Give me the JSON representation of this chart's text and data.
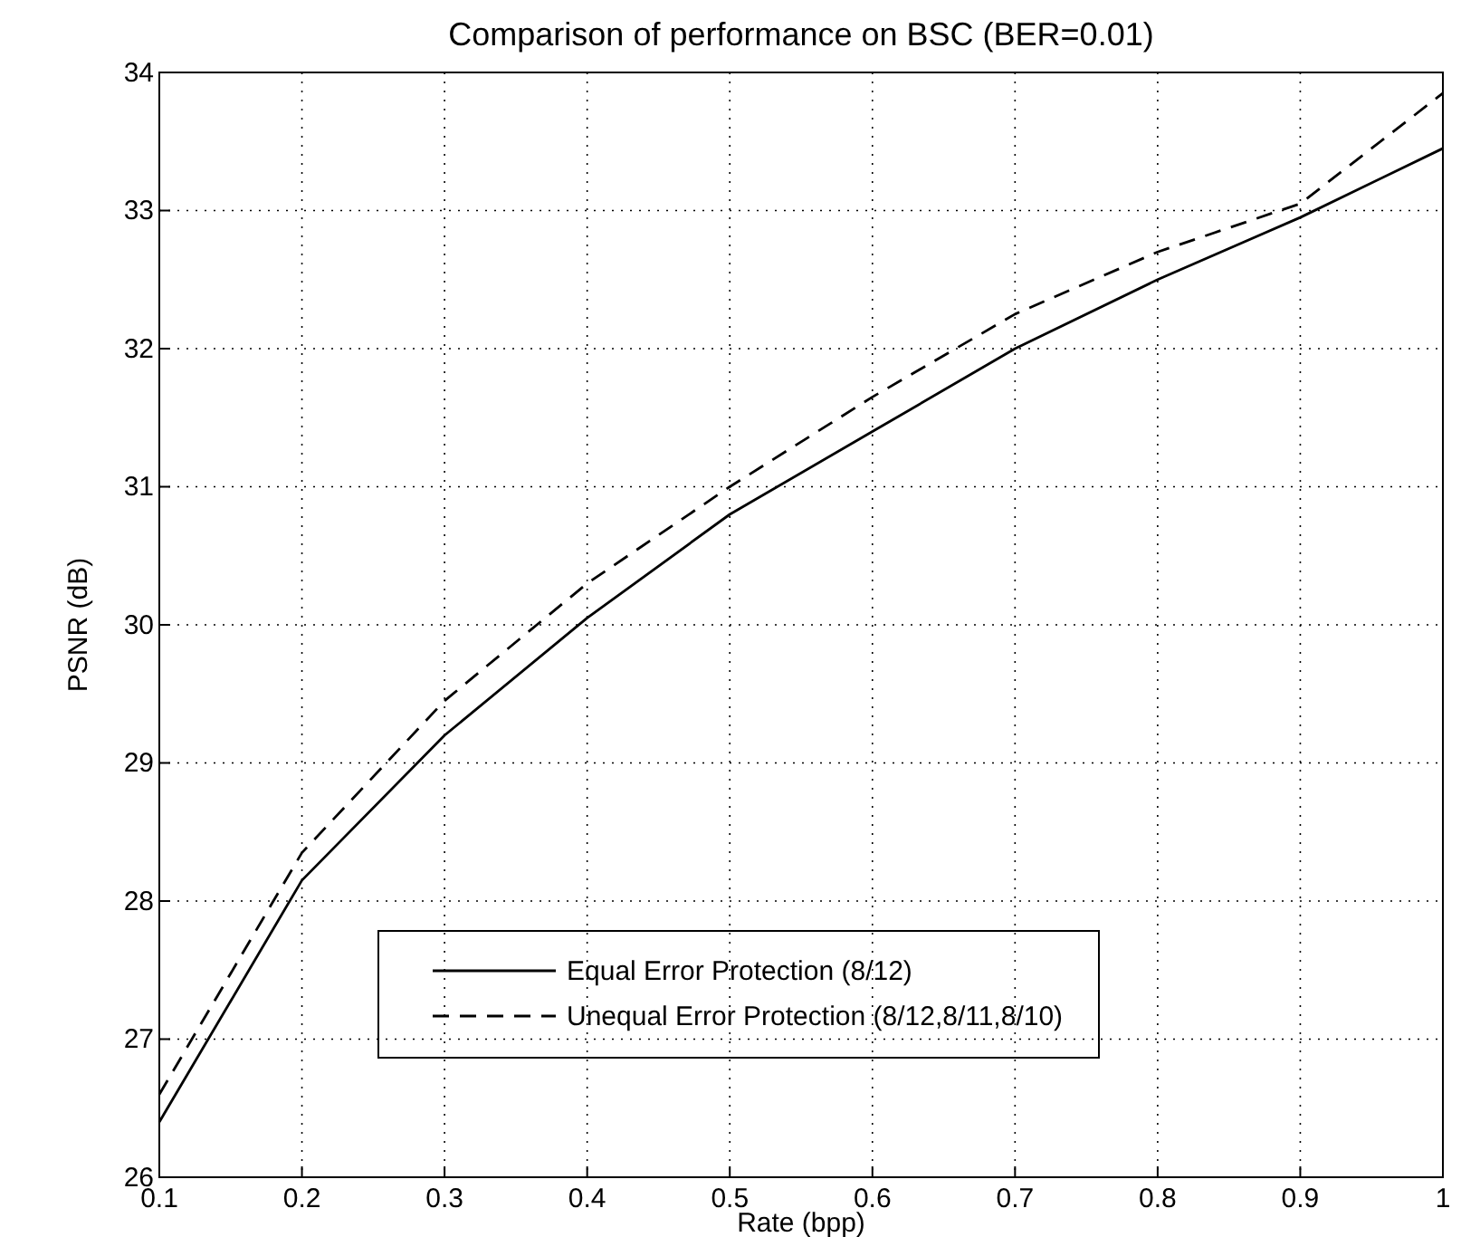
{
  "chart_data": {
    "type": "line",
    "title": "Comparison of performance on BSC (BER=0.01)",
    "xlabel": "Rate (bpp)",
    "ylabel": "PSNR (dB)",
    "x": [
      0.1,
      0.2,
      0.3,
      0.4,
      0.5,
      0.6,
      0.7,
      0.8,
      0.9,
      1
    ],
    "series": [
      {
        "name": "Equal Error Protection (8/12)",
        "color": "#000000",
        "line_style": "solid",
        "values": [
          26.4,
          28.15,
          29.2,
          30.05,
          30.8,
          31.4,
          32.0,
          32.5,
          32.95,
          33.45
        ]
      },
      {
        "name": "Unequal Error Protection (8/12,8/11,8/10)",
        "color": "#000000",
        "line_style": "dashed",
        "values": [
          26.6,
          28.35,
          29.45,
          30.3,
          31.0,
          31.65,
          32.25,
          32.7,
          33.05,
          33.85
        ]
      }
    ],
    "xlim": [
      0.1,
      1
    ],
    "ylim": [
      26,
      34
    ],
    "xticks": [
      0.1,
      0.2,
      0.3,
      0.4,
      0.5,
      0.6,
      0.7,
      0.8,
      0.9,
      1
    ],
    "yticks": [
      26,
      27,
      28,
      29,
      30,
      31,
      32,
      33,
      34
    ],
    "grid": true,
    "legend": "bottom right",
    "marker": "none"
  }
}
